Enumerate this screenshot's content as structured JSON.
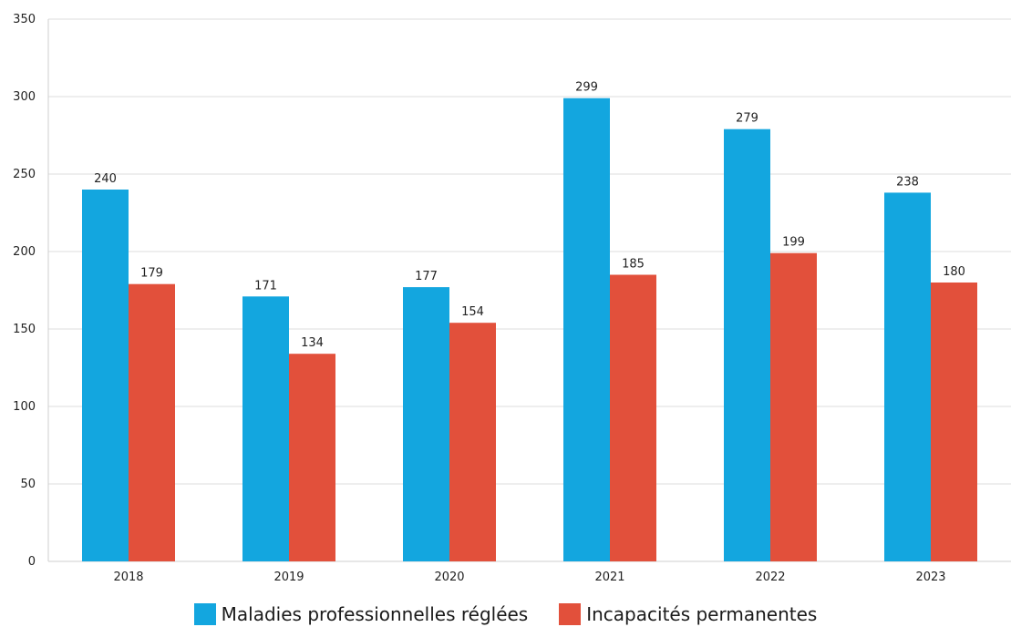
{
  "chart_data": {
    "type": "bar",
    "categories": [
      "2018",
      "2019",
      "2020",
      "2021",
      "2022",
      "2023"
    ],
    "series": [
      {
        "name": "Maladies professionnelles réglées",
        "color": "#13a6df",
        "values": [
          240,
          171,
          177,
          299,
          279,
          238
        ]
      },
      {
        "name": "Incapacités permanentes",
        "color": "#e2503b",
        "values": [
          179,
          134,
          154,
          185,
          199,
          180
        ]
      }
    ],
    "ylim": [
      0,
      350
    ],
    "yticks": [
      0,
      50,
      100,
      150,
      200,
      250,
      300,
      350
    ],
    "grid": true,
    "legend_position": "bottom",
    "title": "",
    "xlabel": "",
    "ylabel": ""
  }
}
